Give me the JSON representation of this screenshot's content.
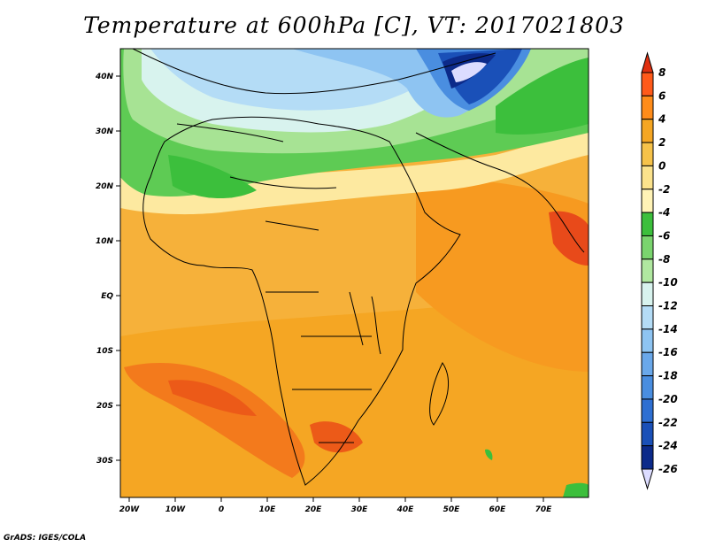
{
  "title": "Temperature at 600hPa [C], VT: 2017021803",
  "footer": "GrADS: IGES/COLA",
  "map": {
    "lat_ticks": [
      "40N",
      "30N",
      "20N",
      "10N",
      "EQ",
      "10S",
      "20S",
      "30S"
    ],
    "lon_ticks": [
      "20W",
      "10W",
      "0",
      "10E",
      "20E",
      "30E",
      "40E",
      "50E",
      "60E",
      "70E"
    ]
  },
  "colorbar": {
    "labels": [
      "8",
      "6",
      "4",
      "2",
      "0",
      "-2",
      "-4",
      "-6",
      "-8",
      "-10",
      "-12",
      "-14",
      "-16",
      "-18",
      "-20",
      "-22",
      "-24",
      "-26"
    ],
    "colors": [
      "#e03010",
      "#ff5a1a",
      "#ff8c1a",
      "#f5a623",
      "#f6c24a",
      "#fbe28c",
      "#fff3b6",
      "#3cbf3c",
      "#7ad46e",
      "#b0e8a0",
      "#d8f3ee",
      "#b4dcf6",
      "#8ec4f2",
      "#6aa8ea",
      "#4a8ee0",
      "#2e6fd2",
      "#1a50b8",
      "#0c2a8a",
      "#dcdcff"
    ]
  },
  "chart_data": {
    "type": "heatmap",
    "title": "Temperature at 600hPa [C], VT: 2017021803",
    "xlabel": "",
    "ylabel": "",
    "x_ticks": [
      "20W",
      "10W",
      "0",
      "10E",
      "20E",
      "30E",
      "40E",
      "50E",
      "60E",
      "70E"
    ],
    "y_ticks": [
      "40N",
      "30N",
      "20N",
      "10N",
      "EQ",
      "10S",
      "20S",
      "30S"
    ],
    "colorbar_levels": [
      8,
      6,
      4,
      2,
      0,
      -2,
      -4,
      -6,
      -8,
      -10,
      -12,
      -14,
      -16,
      -18,
      -20,
      -22,
      -24,
      -26
    ]
  }
}
